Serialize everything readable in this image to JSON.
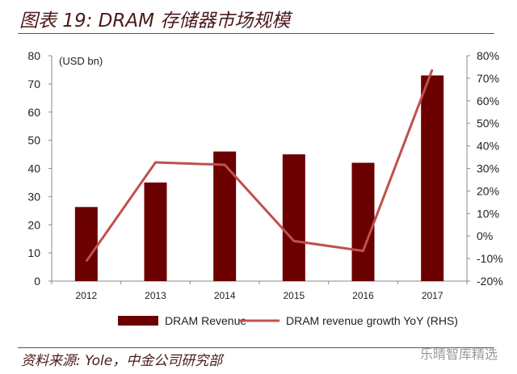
{
  "title": "图表 19: DRAM 存储器市场规模",
  "source": "资料来源: Yole，中金公司研究部",
  "watermark": "乐晴智库精选",
  "colors": {
    "bar": "#6b0000",
    "line": "#c0504d",
    "title": "#4a1a1a"
  },
  "chart_data": {
    "type": "bar",
    "categories": [
      "2012",
      "2013",
      "2014",
      "2015",
      "2016",
      "2017"
    ],
    "series": [
      {
        "name": "DRAM Revenue",
        "type": "bar",
        "axis": "left",
        "values": [
          26.3,
          35,
          46,
          45,
          42,
          73
        ]
      },
      {
        "name": "DRAM revenue growth YoY (RHS)",
        "type": "line",
        "axis": "right",
        "values": [
          -11.2,
          32.7,
          31.6,
          -2.2,
          -6.6,
          73.9
        ]
      }
    ],
    "ylabel": "(USD bn)",
    "ylim": [
      0,
      80
    ],
    "yticks": [
      "0",
      "10",
      "20",
      "30",
      "40",
      "50",
      "60",
      "70",
      "80"
    ],
    "y2lim": [
      -20,
      80
    ],
    "y2ticks": [
      "-20%",
      "-10%",
      "0%",
      "10%",
      "20%",
      "30%",
      "40%",
      "50%",
      "60%",
      "70%",
      "80%"
    ],
    "legend": "bottom",
    "grid": false
  }
}
